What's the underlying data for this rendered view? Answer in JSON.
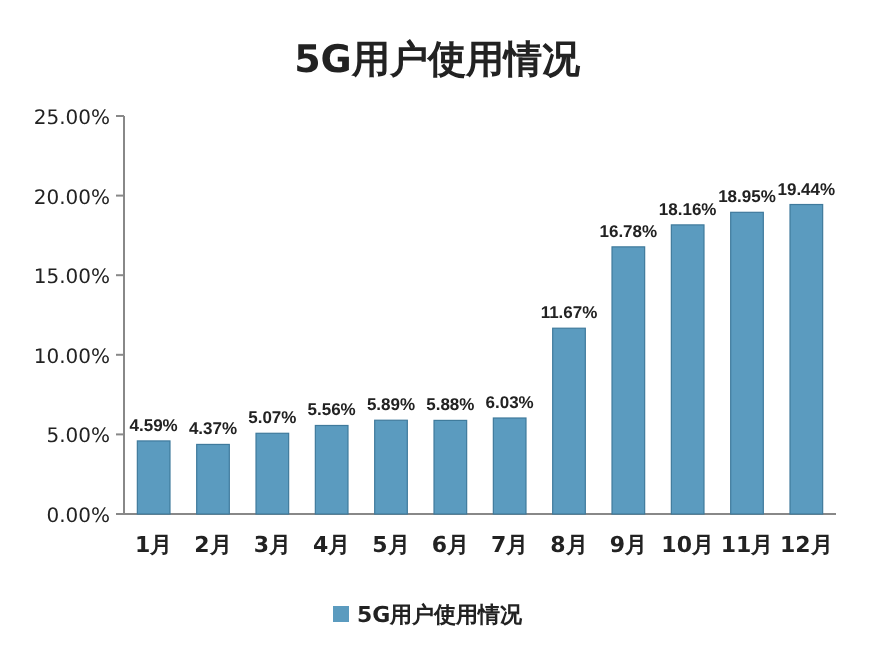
{
  "chart_data": {
    "type": "bar",
    "title": "5G用户使用情况",
    "categories": [
      "1月",
      "2月",
      "3月",
      "4月",
      "5月",
      "6月",
      "7月",
      "8月",
      "9月",
      "10月",
      "11月",
      "12月"
    ],
    "series": [
      {
        "name": "5G用户使用情况",
        "color": "#5b9bbf",
        "values": [
          4.59,
          4.37,
          5.07,
          5.56,
          5.89,
          5.88,
          6.03,
          11.67,
          16.78,
          18.16,
          18.95,
          19.44
        ],
        "value_labels": [
          "4.59%",
          "4.37%",
          "5.07%",
          "5.56%",
          "5.89%",
          "5.88%",
          "6.03%",
          "11.67%",
          "16.78%",
          "18.16%",
          "18.95%",
          "19.44%"
        ]
      }
    ],
    "ylim": [
      0,
      25
    ],
    "yticks": [
      {
        "value": 0,
        "label": "0.00%"
      },
      {
        "value": 5,
        "label": "5.00%"
      },
      {
        "value": 10,
        "label": "10.00%"
      },
      {
        "value": 15,
        "label": "15.00%"
      },
      {
        "value": 20,
        "label": "20.00%"
      },
      {
        "value": 25,
        "label": "25.00%"
      }
    ],
    "grid": false,
    "legend": "bottom"
  }
}
